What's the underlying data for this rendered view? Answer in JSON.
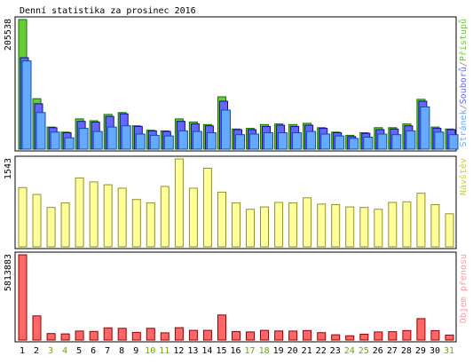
{
  "chart_data": {
    "type": "bar",
    "title": "Denní statistika za prosinec 2016",
    "categories": [
      "1",
      "2",
      "3",
      "4",
      "5",
      "6",
      "7",
      "8",
      "9",
      "10",
      "11",
      "12",
      "13",
      "14",
      "15",
      "16",
      "17",
      "18",
      "19",
      "20",
      "21",
      "22",
      "23",
      "24",
      "25",
      "26",
      "27",
      "28",
      "29",
      "30",
      "31"
    ],
    "weekend_days": [
      "3",
      "4",
      "10",
      "11",
      "17",
      "18",
      "24",
      "25",
      "31"
    ],
    "colors": {
      "pristupu": "#66cc33",
      "souboru": "#6666ff",
      "stranek": "#66aaff",
      "navstev": "#ffff99",
      "objem": "#ff6666",
      "weekend_label": "#66aa00",
      "weekday_label": "#000000",
      "border": "#000000"
    },
    "panels": [
      {
        "id": "hits",
        "max_label": "205538",
        "legend": [
          {
            "text": "Stránek",
            "color": "#66aaff"
          },
          {
            "text": "/",
            "color": "#888888"
          },
          {
            "text": "Souborů",
            "color": "#6666ff"
          },
          {
            "text": "/",
            "color": "#888888"
          },
          {
            "text": "Přístupů",
            "color": "#66cc33"
          }
        ],
        "ylim": [
          0,
          205538
        ],
        "series": [
          {
            "name": "Přístupů",
            "values": [
              205538,
              80000,
              35000,
              27000,
              48000,
              45000,
              55000,
              58000,
              37000,
              30000,
              29000,
              48000,
              43000,
              39000,
              83000,
              32000,
              33000,
              39000,
              40000,
              39000,
              41000,
              34000,
              27000,
              22000,
              26000,
              34000,
              34000,
              40000,
              79000,
              35000,
              32000
            ]
          },
          {
            "name": "Souborů",
            "values": [
              145000,
              72000,
              34000,
              26000,
              44000,
              43000,
              52000,
              56000,
              36000,
              29000,
              28000,
              44000,
              40000,
              37000,
              76000,
              31000,
              31000,
              36000,
              38000,
              36000,
              38000,
              33000,
              26000,
              20000,
              25000,
              31000,
              32000,
              37000,
              76000,
              33000,
              31000
            ]
          },
          {
            "name": "Stránek",
            "values": [
              140000,
              58000,
              27000,
              18000,
              33000,
              28000,
              35000,
              37000,
              24000,
              22000,
              21000,
              29000,
              28000,
              26000,
              62000,
              23000,
              24000,
              26000,
              26000,
              26000,
              28000,
              24000,
              21000,
              17000,
              19000,
              24000,
              23000,
              29000,
              67000,
              27000,
              23000
            ]
          }
        ]
      },
      {
        "id": "visits",
        "max_label": "1543",
        "legend": [
          {
            "text": "Návštěv",
            "color": "#cccc33"
          }
        ],
        "ylim": [
          0,
          1543
        ],
        "series": [
          {
            "name": "Návštěv",
            "values": [
              1040,
              920,
              690,
              770,
              1210,
              1140,
              1090,
              1030,
              830,
              770,
              1060,
              1543,
              1030,
              1380,
              960,
              770,
              660,
              700,
              780,
              770,
              860,
              750,
              740,
              700,
              690,
              660,
              780,
              790,
              940,
              740,
              580
            ]
          }
        ]
      },
      {
        "id": "transfer",
        "max_label": "5813883",
        "legend": [
          {
            "text": "Objem přenosu",
            "color": "#ff9999"
          }
        ],
        "ylim": [
          0,
          5813883
        ],
        "series": [
          {
            "name": "Objem přenosu",
            "values": [
              5813883,
              1650000,
              440000,
              420000,
              610000,
              590000,
              830000,
              800000,
              520000,
              800000,
              490000,
              840000,
              660000,
              660000,
              1710000,
              580000,
              550000,
              660000,
              620000,
              610000,
              650000,
              500000,
              360000,
              290000,
              400000,
              550000,
              570000,
              650000,
              1460000,
              640000,
              340000
            ]
          }
        ]
      }
    ]
  }
}
